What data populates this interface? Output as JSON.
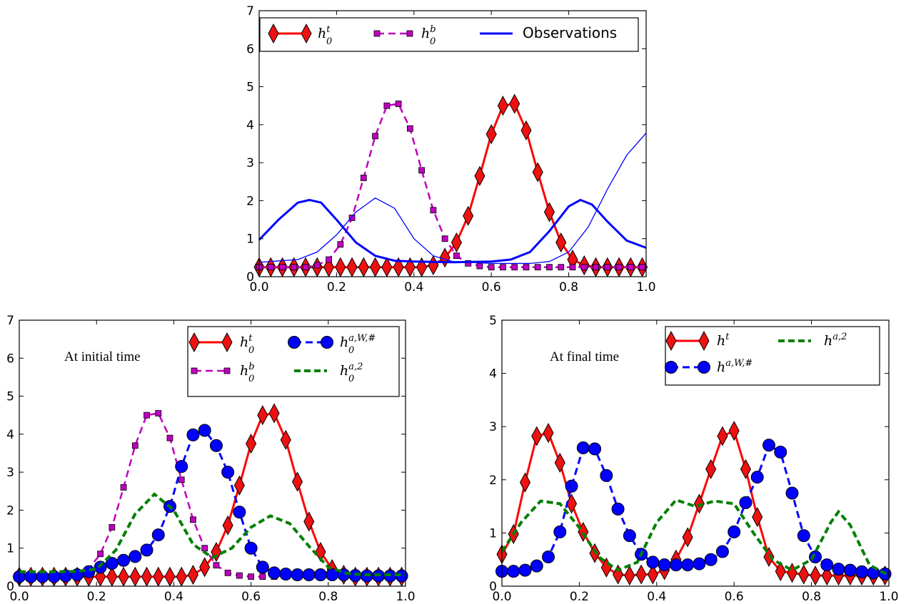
{
  "chart_data": [
    {
      "type": "line",
      "xlim": [
        0.0,
        1.0
      ],
      "ylim": [
        0,
        7
      ],
      "xticks": [
        "0.0",
        "0.2",
        "0.4",
        "0.6",
        "0.8",
        "1.0"
      ],
      "yticks": [
        "0",
        "1",
        "2",
        "3",
        "4",
        "5",
        "6",
        "7"
      ],
      "legend_position": "top",
      "series": [
        {
          "name": "h_0^t",
          "legend_base": "h",
          "legend_sub": "0",
          "legend_sup": "t",
          "color": "#ff0000",
          "linestyle": "solid",
          "marker": "diamond",
          "marker_color": "#ee1111",
          "x": [
            0,
            0.03,
            0.06,
            0.09,
            0.12,
            0.15,
            0.18,
            0.21,
            0.24,
            0.27,
            0.3,
            0.33,
            0.36,
            0.39,
            0.42,
            0.45,
            0.48,
            0.51,
            0.54,
            0.57,
            0.6,
            0.63,
            0.66,
            0.69,
            0.72,
            0.75,
            0.78,
            0.81,
            0.84,
            0.87,
            0.9,
            0.93,
            0.96,
            0.99
          ],
          "y": [
            0.25,
            0.25,
            0.25,
            0.25,
            0.25,
            0.25,
            0.25,
            0.25,
            0.25,
            0.25,
            0.25,
            0.25,
            0.25,
            0.25,
            0.25,
            0.3,
            0.5,
            0.9,
            1.6,
            2.65,
            3.75,
            4.5,
            4.55,
            3.85,
            2.75,
            1.7,
            0.9,
            0.45,
            0.3,
            0.25,
            0.25,
            0.25,
            0.25,
            0.25
          ]
        },
        {
          "name": "h_0^b",
          "legend_base": "h",
          "legend_sub": "0",
          "legend_sup": "b",
          "color": "#bf00bf",
          "linestyle": "dashed",
          "marker": "square",
          "marker_color": "#bf00bf",
          "x": [
            0,
            0.03,
            0.06,
            0.09,
            0.12,
            0.15,
            0.18,
            0.21,
            0.24,
            0.27,
            0.3,
            0.33,
            0.36,
            0.39,
            0.42,
            0.45,
            0.48,
            0.51,
            0.54,
            0.57,
            0.6,
            0.63,
            0.66,
            0.69,
            0.72,
            0.75,
            0.78,
            0.81,
            0.84,
            0.87,
            0.9,
            0.93,
            0.96,
            0.99
          ],
          "y": [
            0.25,
            0.25,
            0.25,
            0.25,
            0.25,
            0.3,
            0.45,
            0.85,
            1.55,
            2.6,
            3.7,
            4.5,
            4.55,
            3.9,
            2.8,
            1.75,
            1.0,
            0.55,
            0.35,
            0.28,
            0.25,
            0.25,
            0.25,
            0.25,
            0.25,
            0.25,
            0.25,
            0.25,
            0.25,
            0.25,
            0.25,
            0.25,
            0.25,
            0.25
          ]
        },
        {
          "name": "Observations",
          "color": "#0000ff",
          "linestyle": "solid",
          "width": "thick",
          "x": [
            0,
            0.05,
            0.1,
            0.13,
            0.16,
            0.2,
            0.25,
            0.3,
            0.35,
            0.4,
            0.5,
            0.6,
            0.65,
            0.7,
            0.75,
            0.8,
            0.83,
            0.86,
            0.9,
            0.95,
            1.0
          ],
          "y": [
            0.97,
            1.5,
            1.95,
            2.02,
            1.95,
            1.5,
            0.9,
            0.55,
            0.42,
            0.4,
            0.38,
            0.4,
            0.45,
            0.65,
            1.2,
            1.85,
            2.02,
            1.9,
            1.45,
            0.95,
            0.76
          ]
        },
        {
          "name": "",
          "color": "#0000ff",
          "linestyle": "solid",
          "width": "thin",
          "x": [
            0,
            0.1,
            0.15,
            0.2,
            0.25,
            0.3,
            0.35,
            0.4,
            0.45,
            0.5,
            0.6,
            0.7,
            0.75,
            0.8,
            0.85,
            0.9,
            0.95,
            1.0
          ],
          "y": [
            0.38,
            0.45,
            0.65,
            1.1,
            1.7,
            2.07,
            1.8,
            1.0,
            0.55,
            0.4,
            0.35,
            0.35,
            0.4,
            0.65,
            1.3,
            2.3,
            3.2,
            3.78
          ]
        }
      ]
    },
    {
      "type": "line",
      "xlim": [
        0.0,
        1.0
      ],
      "ylim": [
        0,
        7
      ],
      "xticks": [
        "0.0",
        "0.2",
        "0.4",
        "0.6",
        "0.8",
        "1.0"
      ],
      "yticks": [
        "0",
        "1",
        "2",
        "3",
        "4",
        "5",
        "6",
        "7"
      ],
      "annotation": "At initial time",
      "legend_position": "top-right",
      "series": [
        {
          "name": "h_0^t",
          "legend_base": "h",
          "legend_sub": "0",
          "legend_sup": "t",
          "color": "#ff0000",
          "linestyle": "solid",
          "marker": "diamond",
          "marker_color": "#ee1111",
          "x": [
            0,
            0.03,
            0.06,
            0.09,
            0.12,
            0.15,
            0.18,
            0.21,
            0.24,
            0.27,
            0.3,
            0.33,
            0.36,
            0.39,
            0.42,
            0.45,
            0.48,
            0.51,
            0.54,
            0.57,
            0.6,
            0.63,
            0.66,
            0.69,
            0.72,
            0.75,
            0.78,
            0.81,
            0.84,
            0.87,
            0.9,
            0.93,
            0.96,
            0.99
          ],
          "y": [
            0.25,
            0.25,
            0.25,
            0.25,
            0.25,
            0.25,
            0.25,
            0.25,
            0.25,
            0.25,
            0.25,
            0.25,
            0.25,
            0.25,
            0.25,
            0.3,
            0.5,
            0.9,
            1.6,
            2.65,
            3.75,
            4.5,
            4.55,
            3.85,
            2.75,
            1.7,
            0.9,
            0.45,
            0.3,
            0.25,
            0.25,
            0.25,
            0.25,
            0.25
          ]
        },
        {
          "name": "h_0^b",
          "legend_base": "h",
          "legend_sub": "0",
          "legend_sup": "b",
          "color": "#bf00bf",
          "linestyle": "dashed",
          "marker": "square",
          "marker_color": "#bf00bf",
          "x": [
            0,
            0.03,
            0.06,
            0.09,
            0.12,
            0.15,
            0.18,
            0.21,
            0.24,
            0.27,
            0.3,
            0.33,
            0.36,
            0.39,
            0.42,
            0.45,
            0.48,
            0.51,
            0.54,
            0.57,
            0.6,
            0.63,
            0.66,
            0.69,
            0.72,
            0.75,
            0.78,
            0.81,
            0.84,
            0.87,
            0.9,
            0.93,
            0.96,
            0.99
          ],
          "y": [
            0.25,
            0.25,
            0.25,
            0.25,
            0.25,
            0.3,
            0.45,
            0.85,
            1.55,
            2.6,
            3.7,
            4.5,
            4.55,
            3.9,
            2.8,
            1.75,
            1.0,
            0.55,
            0.35,
            0.28,
            0.25,
            0.25,
            0.25,
            0.25,
            0.25,
            0.25,
            0.25,
            0.25,
            0.25,
            0.25,
            0.25,
            0.25,
            0.25,
            0.25
          ]
        },
        {
          "name": "h_0^{a,W,#}",
          "legend_base": "h",
          "legend_sub": "0",
          "legend_sup": "a,W,#",
          "color": "#0000ff",
          "linestyle": "dashed",
          "marker": "circle",
          "marker_color": "#0000ff",
          "x": [
            0,
            0.03,
            0.06,
            0.09,
            0.12,
            0.15,
            0.18,
            0.21,
            0.24,
            0.27,
            0.3,
            0.33,
            0.36,
            0.39,
            0.42,
            0.45,
            0.48,
            0.51,
            0.54,
            0.57,
            0.6,
            0.63,
            0.66,
            0.69,
            0.72,
            0.75,
            0.78,
            0.81,
            0.84,
            0.87,
            0.9,
            0.93,
            0.96,
            0.99
          ],
          "y": [
            0.25,
            0.25,
            0.25,
            0.25,
            0.27,
            0.3,
            0.38,
            0.5,
            0.6,
            0.68,
            0.78,
            0.95,
            1.35,
            2.1,
            3.15,
            3.98,
            4.1,
            3.7,
            3.0,
            1.95,
            1.0,
            0.5,
            0.35,
            0.32,
            0.3,
            0.3,
            0.3,
            0.3,
            0.3,
            0.28,
            0.27,
            0.27,
            0.27,
            0.27
          ]
        },
        {
          "name": "h_0^{a,2}",
          "legend_base": "h",
          "legend_sub": "0",
          "legend_sup": "a,2",
          "color": "#008000",
          "linestyle": "dotted",
          "x": [
            0,
            0.05,
            0.1,
            0.15,
            0.2,
            0.25,
            0.3,
            0.35,
            0.4,
            0.45,
            0.5,
            0.55,
            0.6,
            0.65,
            0.7,
            0.75,
            0.8,
            0.85,
            0.9,
            0.95,
            1.0
          ],
          "y": [
            0.38,
            0.38,
            0.38,
            0.39,
            0.45,
            0.95,
            1.9,
            2.42,
            2.0,
            1.1,
            0.75,
            1.0,
            1.55,
            1.85,
            1.65,
            1.05,
            0.5,
            0.33,
            0.3,
            0.3,
            0.3
          ]
        }
      ]
    },
    {
      "type": "line",
      "xlim": [
        0.0,
        1.0
      ],
      "ylim": [
        0,
        5
      ],
      "xticks": [
        "0.0",
        "0.2",
        "0.4",
        "0.6",
        "0.8",
        "1.0"
      ],
      "yticks": [
        "0",
        "1",
        "2",
        "3",
        "4",
        "5"
      ],
      "annotation": "At final time",
      "legend_position": "top-right",
      "series": [
        {
          "name": "h^t",
          "legend_base": "h",
          "legend_sub": "",
          "legend_sup": "t",
          "color": "#ff0000",
          "linestyle": "solid",
          "marker": "diamond",
          "marker_color": "#ee1111",
          "x": [
            0,
            0.03,
            0.06,
            0.09,
            0.12,
            0.15,
            0.18,
            0.21,
            0.24,
            0.27,
            0.3,
            0.33,
            0.36,
            0.39,
            0.42,
            0.45,
            0.48,
            0.51,
            0.54,
            0.57,
            0.6,
            0.63,
            0.66,
            0.69,
            0.72,
            0.75,
            0.78,
            0.81,
            0.84,
            0.87,
            0.9,
            0.93,
            0.96,
            0.99
          ],
          "y": [
            0.6,
            0.98,
            1.95,
            2.82,
            2.88,
            2.32,
            1.55,
            1.02,
            0.62,
            0.35,
            0.22,
            0.2,
            0.22,
            0.22,
            0.3,
            0.5,
            0.92,
            1.55,
            2.2,
            2.82,
            2.92,
            2.2,
            1.3,
            0.55,
            0.28,
            0.25,
            0.22,
            0.2,
            0.2,
            0.2,
            0.2,
            0.2,
            0.2,
            0.2
          ]
        },
        {
          "name": "h^{a,W,#}",
          "legend_base": "h",
          "legend_sub": "",
          "legend_sup": "a,W,#",
          "color": "#0000ff",
          "linestyle": "dashed",
          "marker": "circle",
          "marker_color": "#0000ff",
          "x": [
            0,
            0.03,
            0.06,
            0.09,
            0.12,
            0.15,
            0.18,
            0.21,
            0.24,
            0.27,
            0.3,
            0.33,
            0.36,
            0.39,
            0.42,
            0.45,
            0.48,
            0.51,
            0.54,
            0.57,
            0.6,
            0.63,
            0.66,
            0.69,
            0.72,
            0.75,
            0.78,
            0.81,
            0.84,
            0.87,
            0.9,
            0.93,
            0.96,
            0.99
          ],
          "y": [
            0.28,
            0.28,
            0.3,
            0.38,
            0.55,
            1.02,
            1.88,
            2.6,
            2.58,
            2.08,
            1.45,
            0.95,
            0.6,
            0.45,
            0.4,
            0.4,
            0.4,
            0.42,
            0.5,
            0.65,
            1.02,
            1.57,
            2.05,
            2.65,
            2.52,
            1.75,
            0.95,
            0.55,
            0.4,
            0.32,
            0.3,
            0.27,
            0.25,
            0.23
          ]
        },
        {
          "name": "h^{a,2}",
          "legend_base": "h",
          "legend_sub": "",
          "legend_sup": "a,2",
          "color": "#008000",
          "linestyle": "dotted",
          "x": [
            0,
            0.05,
            0.1,
            0.15,
            0.2,
            0.25,
            0.3,
            0.35,
            0.4,
            0.45,
            0.5,
            0.55,
            0.6,
            0.65,
            0.7,
            0.75,
            0.8,
            0.85,
            0.87,
            0.9,
            0.95,
            1.0
          ],
          "y": [
            0.65,
            1.2,
            1.6,
            1.55,
            1.1,
            0.55,
            0.3,
            0.45,
            1.2,
            1.62,
            1.5,
            1.6,
            1.55,
            1.0,
            0.5,
            0.3,
            0.5,
            1.2,
            1.4,
            1.15,
            0.4,
            0.2
          ]
        }
      ]
    }
  ]
}
